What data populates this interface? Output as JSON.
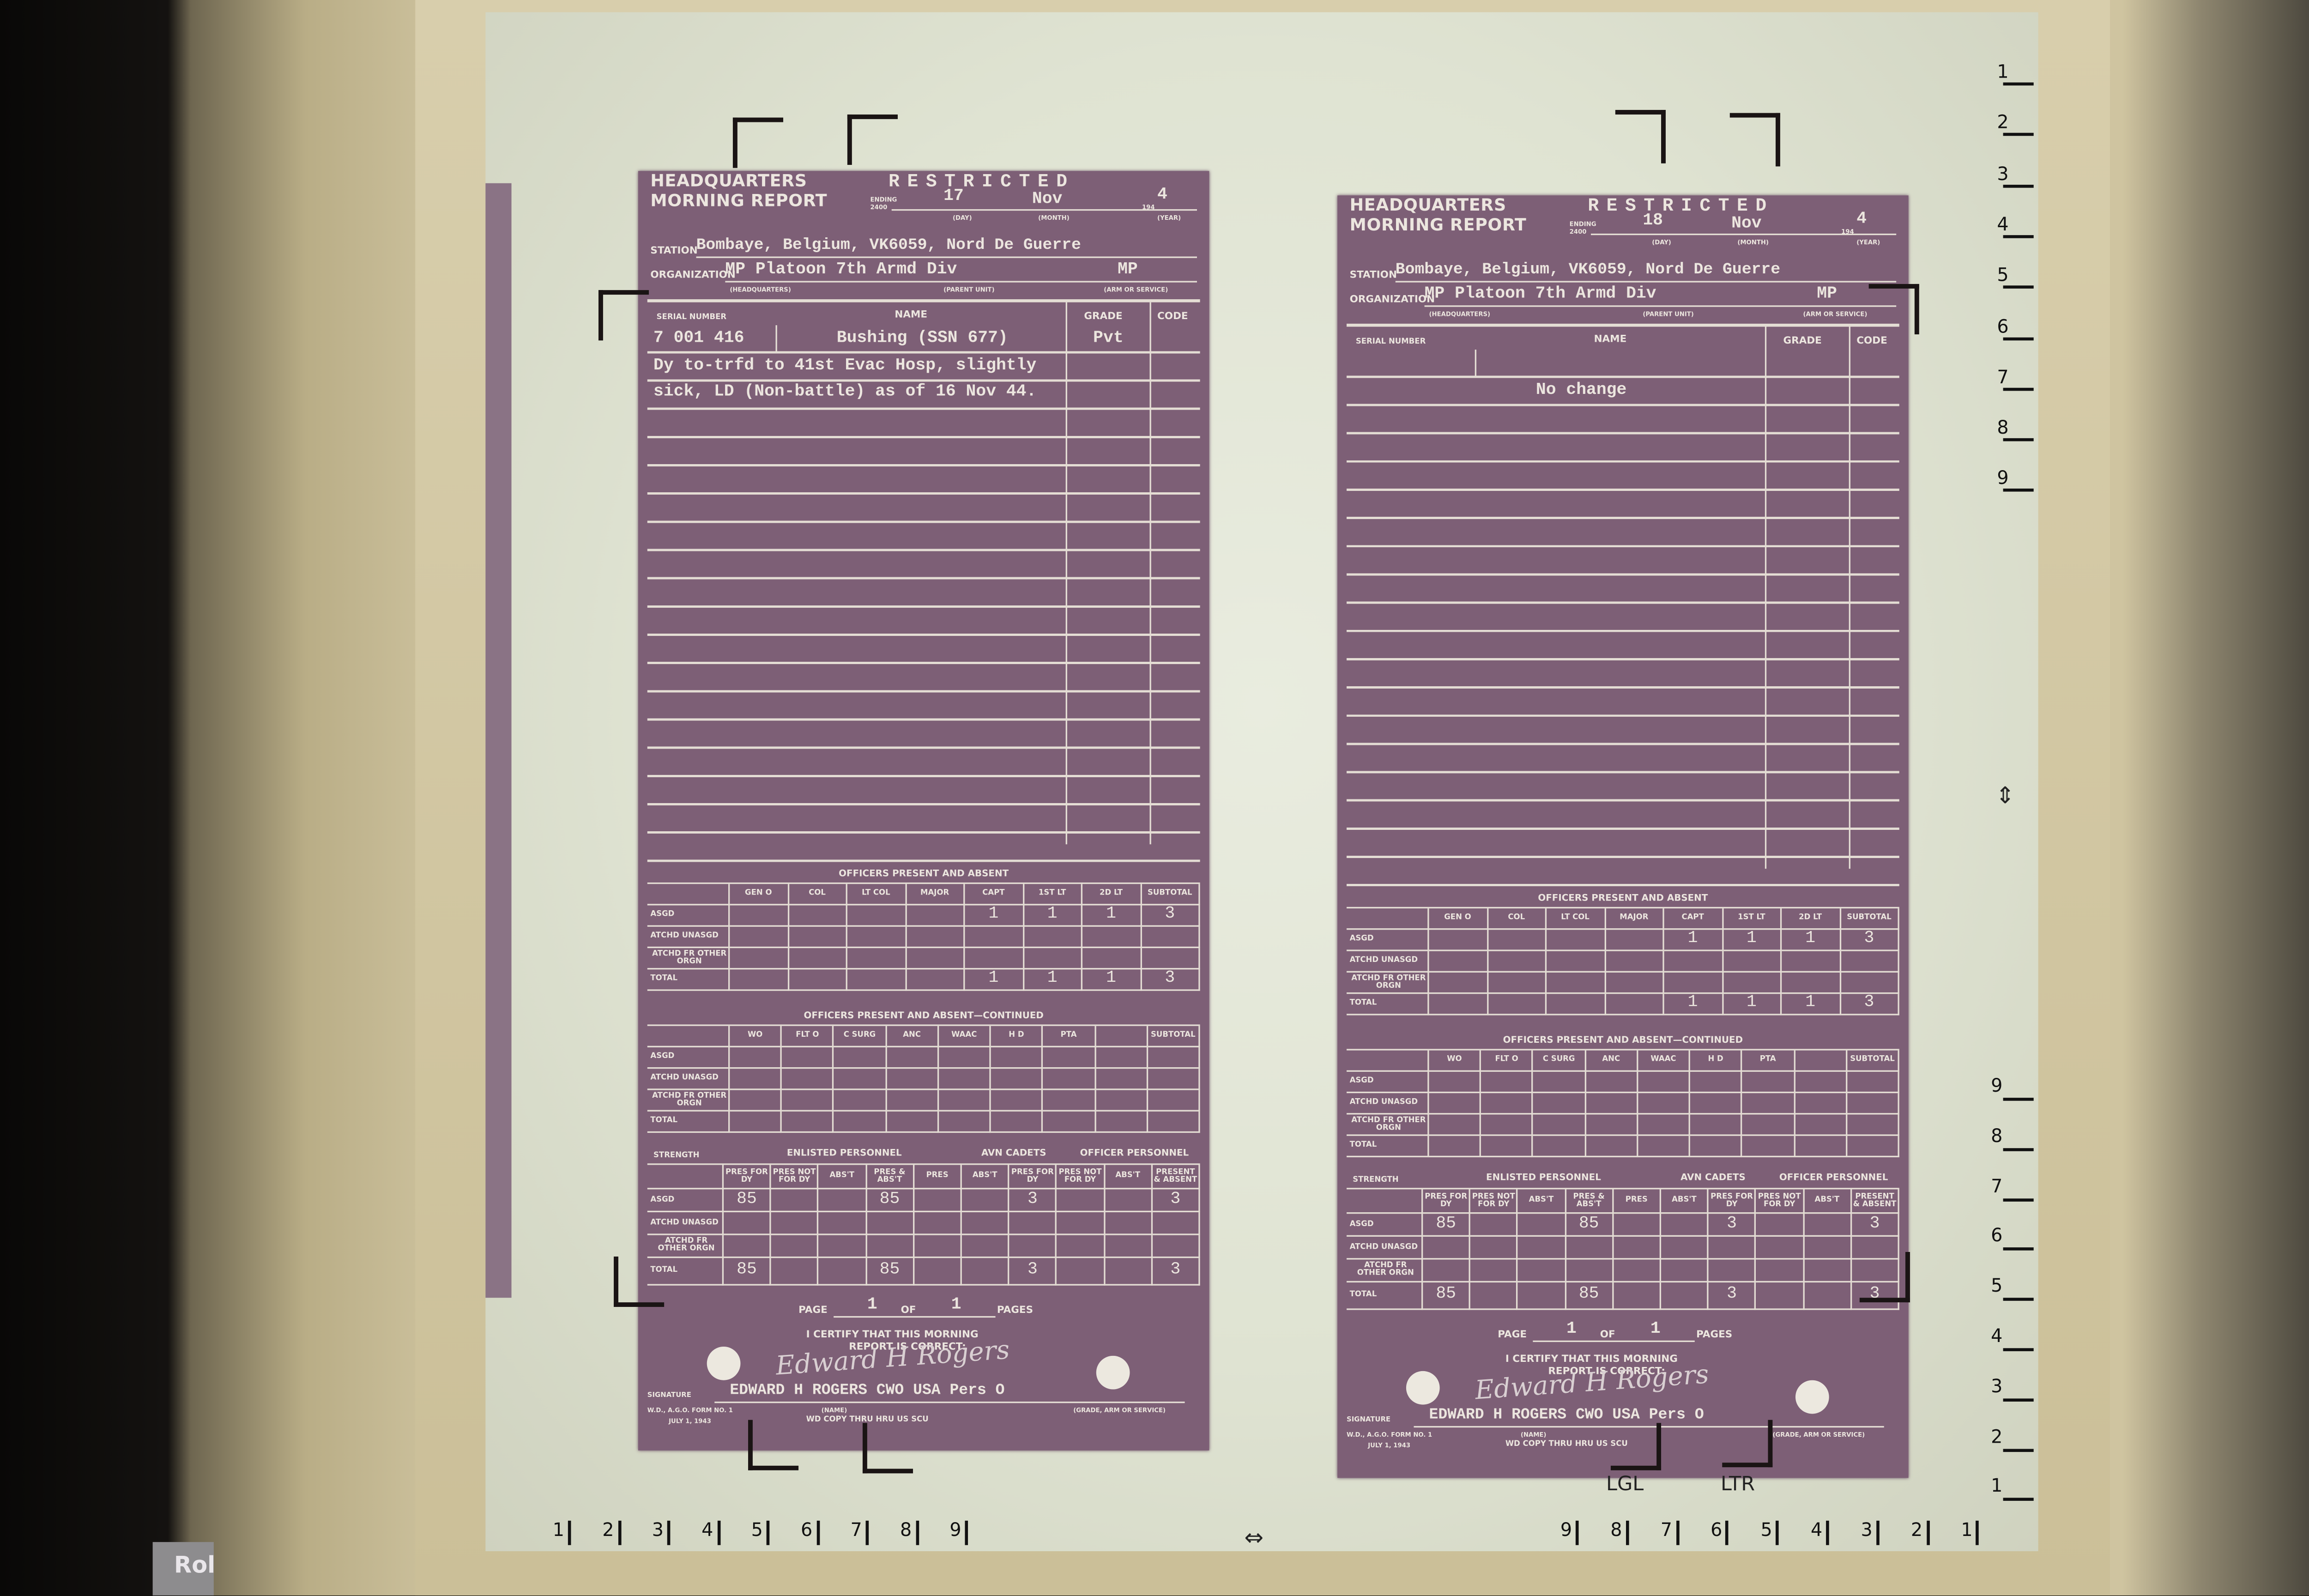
{
  "reader": {
    "brand_fragment": "Rol",
    "right_scale_top": [
      "1",
      "2",
      "3",
      "4",
      "5",
      "6",
      "7",
      "8",
      "9"
    ],
    "right_scale_bottom": [
      "9",
      "8",
      "7",
      "6",
      "5",
      "4",
      "3",
      "2",
      "1"
    ],
    "bottom_scale_left": [
      "1",
      "2",
      "3",
      "4",
      "5",
      "6",
      "7",
      "8",
      "9"
    ],
    "bottom_scale_right": [
      "9",
      "8",
      "7",
      "6",
      "5",
      "4",
      "3",
      "2",
      "1"
    ],
    "paper_size_labels": {
      "legal": "LGL",
      "letter": "LTR"
    },
    "icons": {
      "vertical_center": "vertical-center-arrows-icon",
      "horizontal_center": "horizontal-center-arrows-icon"
    }
  },
  "form": {
    "headquarters": "HEADQUARTERS",
    "title": "MORNING REPORT",
    "classification": "RESTRICTED",
    "ending_label": "ENDING",
    "ending_time": "2400",
    "day_caption": "(DAY)",
    "month_caption": "(MONTH)",
    "year_caption": "(YEAR)",
    "year_prefix": "194",
    "station_label": "STATION",
    "organization_label": "ORGANIZATION",
    "hq_caption": "(HEADQUARTERS)",
    "parent_caption": "(PARENT UNIT)",
    "arm_caption": "(ARM OR SERVICE)",
    "col_serial": "SERIAL NUMBER",
    "col_name": "NAME",
    "col_grade": "GRADE",
    "col_code": "CODE",
    "officers_title": "OFFICERS PRESENT AND ABSENT",
    "officers_headers": [
      "GEN O",
      "COL",
      "LT COL",
      "MAJOR",
      "CAPT",
      "1ST LT",
      "2D LT",
      "SUBTOTAL"
    ],
    "officers_cont_title": "OFFICERS PRESENT AND ABSENT—CONTINUED",
    "officers_cont_headers": [
      "WO",
      "FLT O",
      "C SURG",
      "ANC",
      "WAAC",
      "H D",
      "PTA",
      "",
      "SUBTOTAL"
    ],
    "row_labels": [
      "ASGD",
      "ATCHD UNASGD",
      "ATCHD FR OTHER ORGN",
      "TOTAL"
    ],
    "strength_label": "STRENGTH",
    "enlisted_title": "ENLISTED PERSONNEL",
    "cadets_title": "AVN CADETS",
    "officer_personnel_title": "OFFICER PERSONNEL",
    "strength_headers": [
      "PRES FOR DY",
      "PRES NOT FOR DY",
      "ABS'T",
      "PRES & ABS'T",
      "PRES",
      "ABS'T",
      "PRES FOR DY",
      "PRES NOT FOR DY",
      "ABS'T",
      "PRESENT & ABSENT"
    ],
    "page_label": "PAGE",
    "of_label": "OF",
    "pages_label": "PAGES",
    "certify_line1": "I CERTIFY THAT THIS MORNING",
    "certify_line2": "REPORT IS CORRECT:",
    "signature_label": "SIGNATURE",
    "name_caption": "(NAME)",
    "grade_caption": "(GRADE, ARM OR SERVICE)",
    "form_number": "W.D., A.G.O. FORM NO. 1",
    "form_date": "JULY 1, 1943"
  },
  "documents": [
    {
      "day": "17",
      "month": "Nov",
      "year": "4",
      "station": "Bombaye, Belgium, VK6059, Nord De Guerre",
      "organization": "MP Platoon 7th Armd Div",
      "arm": "MP",
      "entry_serial": "7 001 416",
      "entry_name": "Bushing (SSN 677)",
      "entry_grade": "Pvt",
      "remark_line1": "Dy to-trfd to 41st Evac Hosp, slightly",
      "remark_line2": "sick, LD (Non-battle) as of 16 Nov 44.",
      "officers_asgd": [
        "",
        "",
        "",
        "",
        "1",
        "1",
        "1",
        "3"
      ],
      "officers_total": [
        "",
        "",
        "",
        "",
        "1",
        "1",
        "1",
        "3"
      ],
      "strength_asgd": [
        "85",
        "",
        "",
        "85",
        "",
        "",
        "3",
        "",
        "",
        "3"
      ],
      "strength_total": [
        "85",
        "",
        "",
        "85",
        "",
        "",
        "3",
        "",
        "",
        "3"
      ],
      "page": "1",
      "of_pages": "1",
      "signature_handwritten": "Edward H Rogers",
      "signer": "EDWARD H ROGERS CWO USA Pers O",
      "copy_note": "WD COPY THRU HRU US SCU"
    },
    {
      "day": "18",
      "month": "Nov",
      "year": "4",
      "station": "Bombaye, Belgium, VK6059, Nord De Guerre",
      "organization": "MP Platoon 7th Armd Div",
      "arm": "MP",
      "entry_serial": "",
      "entry_name": "No change",
      "entry_grade": "",
      "remark_line1": "",
      "remark_line2": "",
      "officers_asgd": [
        "",
        "",
        "",
        "",
        "1",
        "1",
        "1",
        "3"
      ],
      "officers_total": [
        "",
        "",
        "",
        "",
        "1",
        "1",
        "1",
        "3"
      ],
      "strength_asgd": [
        "85",
        "",
        "",
        "85",
        "",
        "",
        "3",
        "",
        "",
        "3"
      ],
      "strength_total": [
        "85",
        "",
        "",
        "85",
        "",
        "",
        "3",
        "",
        "",
        "3"
      ],
      "page": "1",
      "of_pages": "1",
      "signature_handwritten": "Edward H Rogers",
      "signer": "EDWARD H ROGERS CWO USA Pers O",
      "copy_note": "WD COPY THRU HRU US SCU"
    }
  ]
}
